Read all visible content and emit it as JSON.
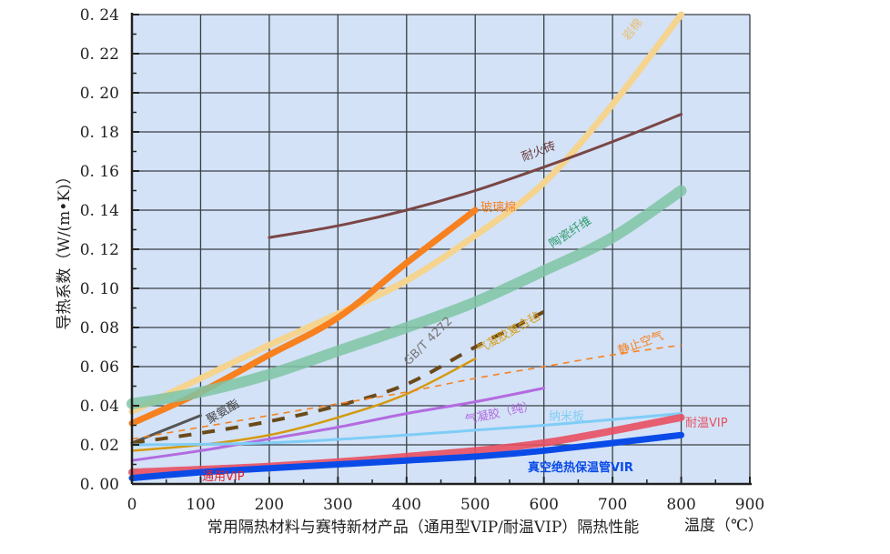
{
  "chart_data": {
    "type": "line",
    "title": "常用隔热材料与赛特新材产品（通用型VIP/耐温VIP）隔热性能",
    "xlabel": "温度（℃）",
    "ylabel": "导热系数（W/(m•K)）",
    "xlim": [
      0,
      900
    ],
    "ylim": [
      0,
      0.24
    ],
    "xticks": [
      "0",
      "100",
      "200",
      "300",
      "400",
      "500",
      "600",
      "700",
      "800",
      "900"
    ],
    "yticks": [
      "0.00",
      "0.02",
      "0.04",
      "0.06",
      "0.08",
      "0.10",
      "0.12",
      "0.14",
      "0.16",
      "0.18",
      "0.20",
      "0.22",
      "0.24"
    ],
    "grid": true,
    "background": "#d3e2f7",
    "series": [
      {
        "name": "岩棉",
        "color": "#f5d48f",
        "x": [
          0,
          100,
          200,
          300,
          400,
          500,
          600,
          700,
          800
        ],
        "y": [
          0.037,
          0.054,
          0.071,
          0.087,
          0.104,
          0.127,
          0.154,
          0.194,
          0.24
        ]
      },
      {
        "name": "玻璃棉",
        "color": "#f7811f",
        "x": [
          0,
          100,
          200,
          300,
          400,
          500
        ],
        "y": [
          0.031,
          0.047,
          0.066,
          0.085,
          0.113,
          0.14
        ]
      },
      {
        "name": "耐火砖",
        "color": "#7a4646",
        "x": [
          200,
          300,
          400,
          500,
          600,
          700,
          800
        ],
        "y": [
          0.126,
          0.132,
          0.14,
          0.15,
          0.162,
          0.175,
          0.189
        ]
      },
      {
        "name": "陶瓷纤维",
        "color": "#7fc4a4",
        "x": [
          0,
          100,
          200,
          300,
          400,
          500,
          600,
          700,
          800
        ],
        "y": [
          0.041,
          0.047,
          0.056,
          0.068,
          0.08,
          0.093,
          0.109,
          0.126,
          0.15
        ]
      },
      {
        "name": "聚氨酯",
        "color": "#555555",
        "x": [
          0,
          100
        ],
        "y": [
          0.021,
          0.035
        ]
      },
      {
        "name": "GB/T 4272",
        "color": "#6b4a1a",
        "x": [
          0,
          100,
          200,
          300,
          400,
          500,
          600
        ],
        "y": [
          0.021,
          0.026,
          0.032,
          0.04,
          0.051,
          0.07,
          0.088
        ]
      },
      {
        "name": "气凝胶复合毡",
        "color": "#d49a10",
        "x": [
          0,
          100,
          200,
          300,
          400,
          500
        ],
        "y": [
          0.017,
          0.02,
          0.025,
          0.034,
          0.046,
          0.064
        ]
      },
      {
        "name": "静止空气",
        "color": "#f7811f",
        "x": [
          0,
          100,
          200,
          300,
          400,
          500,
          600,
          700,
          800
        ],
        "y": [
          0.023,
          0.029,
          0.035,
          0.041,
          0.047,
          0.054,
          0.06,
          0.066,
          0.071
        ]
      },
      {
        "name": "气凝胶（纯）",
        "color": "#b36be0",
        "x": [
          0,
          100,
          200,
          300,
          400,
          500,
          600
        ],
        "y": [
          0.012,
          0.017,
          0.023,
          0.029,
          0.036,
          0.042,
          0.049
        ]
      },
      {
        "name": "纳米板",
        "color": "#7fcdf7",
        "x": [
          0,
          200,
          400,
          600,
          800
        ],
        "y": [
          0.02,
          0.021,
          0.025,
          0.03,
          0.036
        ]
      },
      {
        "name": "耐温VIP",
        "color": "#e85060",
        "x": [
          0,
          200,
          400,
          600,
          800
        ],
        "y": [
          0.006,
          0.009,
          0.014,
          0.021,
          0.034
        ]
      },
      {
        "name": "真空绝热保温管VIR",
        "color": "#0a4be8",
        "x": [
          0,
          100,
          200,
          400,
          500,
          600,
          800
        ],
        "y": [
          0.003,
          0.006,
          0.008,
          0.012,
          0.014,
          0.017,
          0.025
        ]
      }
    ],
    "annotations": [
      "通用VIP"
    ]
  }
}
